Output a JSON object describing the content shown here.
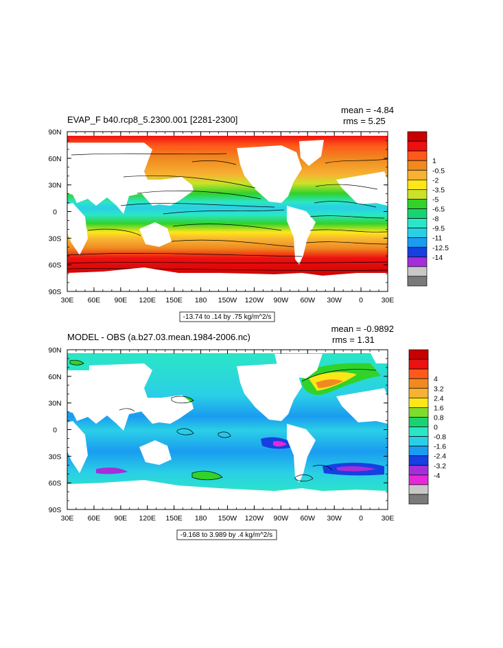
{
  "panels": [
    {
      "title": "EVAP_F b40.rcp8_5.2300.001 [2281-2300]",
      "stats": {
        "mean": "mean = -4.84",
        "rms": "rms = 5.25"
      },
      "range_label": "-13.74 to .14 by .75 kg/m^2/s",
      "colorbar": {
        "colors": [
          "#c80000",
          "#ee1010",
          "#ff5a1a",
          "#f08a20",
          "#f7b233",
          "#ffe619",
          "#cce22a",
          "#31d22a",
          "#1ad273",
          "#2ae6c6",
          "#2acfe6",
          "#1a9cf0",
          "#1640e0",
          "#a42fd8",
          "#c8c8c8",
          "#7a7a7a"
        ],
        "labels": [
          "1",
          "-0.5",
          "-2",
          "-3.5",
          "-5",
          "-6.5",
          "-8",
          "-9.5",
          "-11",
          "-12.5",
          "-14"
        ]
      }
    },
    {
      "title": "MODEL - OBS (a.b27.03.mean.1984-2006.nc)",
      "stats": {
        "mean": "mean = -0.9892",
        "rms": "rms = 1.31"
      },
      "range_label": "-9.168 to 3.989 by .4 kg/m^2/s",
      "colorbar": {
        "colors": [
          "#c80000",
          "#ee1010",
          "#ff5a1a",
          "#f08a20",
          "#f7b233",
          "#ffe619",
          "#7fdc2a",
          "#1ad273",
          "#2ae6c6",
          "#2acfe6",
          "#1a9cf0",
          "#1640e0",
          "#a42fd8",
          "#e628d8",
          "#c8c8c8",
          "#7a7a7a"
        ],
        "labels": [
          "4",
          "3.2",
          "2.4",
          "1.6",
          "0.8",
          "0",
          "-0.8",
          "-1.6",
          "-2.4",
          "-3.2",
          "-4"
        ]
      }
    }
  ],
  "axes": {
    "xticks": [
      "30E",
      "60E",
      "90E",
      "120E",
      "150E",
      "180",
      "150W",
      "120W",
      "90W",
      "60W",
      "30W",
      "0",
      "30E"
    ],
    "yticks": [
      "90N",
      "60N",
      "30N",
      "0",
      "30S",
      "60S",
      "90S"
    ]
  },
  "chart_data": [
    {
      "type": "heatmap",
      "title": "EVAP_F b40.rcp8_5.2300.001 [2281-2300]",
      "x_ticks": [
        "30E",
        "60E",
        "90E",
        "120E",
        "150E",
        "180",
        "150W",
        "120W",
        "90W",
        "60W",
        "30W",
        "0",
        "30E"
      ],
      "y_ticks": [
        "90N",
        "60N",
        "30N",
        "0",
        "30S",
        "60S",
        "90S"
      ],
      "xlim": [
        "30E",
        "30E"
      ],
      "ylim": [
        "90S",
        "90N"
      ],
      "mean": -4.84,
      "rms": 5.25,
      "contour_min": -13.74,
      "contour_max": 0.14,
      "contour_interval": 0.75,
      "units": "kg/m^2/s",
      "colorbar_levels": [
        1,
        -0.5,
        -2,
        -3.5,
        -5,
        -6.5,
        -8,
        -9.5,
        -11,
        -12.5,
        -14
      ]
    },
    {
      "type": "heatmap",
      "title": "MODEL - OBS (a.b27.03.mean.1984-2006.nc)",
      "x_ticks": [
        "30E",
        "60E",
        "90E",
        "120E",
        "150E",
        "180",
        "150W",
        "120W",
        "90W",
        "60W",
        "30W",
        "0",
        "30E"
      ],
      "y_ticks": [
        "90N",
        "60N",
        "30N",
        "0",
        "30S",
        "60S",
        "90S"
      ],
      "xlim": [
        "30E",
        "30E"
      ],
      "ylim": [
        "90S",
        "90N"
      ],
      "mean": -0.9892,
      "rms": 1.31,
      "contour_min": -9.168,
      "contour_max": 3.989,
      "contour_interval": 0.4,
      "units": "kg/m^2/s",
      "colorbar_levels": [
        4,
        3.2,
        2.4,
        1.6,
        0.8,
        0,
        -0.8,
        -1.6,
        -2.4,
        -3.2,
        -4
      ]
    }
  ]
}
